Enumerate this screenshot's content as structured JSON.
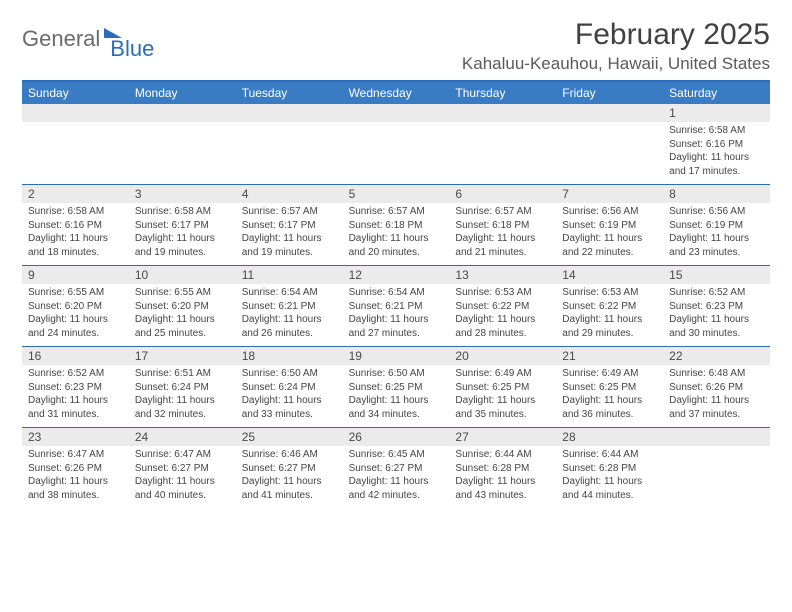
{
  "logo": {
    "text1": "General",
    "text2": "Blue"
  },
  "title": "February 2025",
  "location": "Kahaluu-Keauhou, Hawaii, United States",
  "colors": {
    "header_bar": "#3a7cc4",
    "rule": "#2a6db8",
    "daynum_bg": "#ebebeb",
    "text": "#454545",
    "title_text": "#414141"
  },
  "day_headers": [
    "Sunday",
    "Monday",
    "Tuesday",
    "Wednesday",
    "Thursday",
    "Friday",
    "Saturday"
  ],
  "weeks": [
    [
      null,
      null,
      null,
      null,
      null,
      null,
      {
        "n": "1",
        "sunrise": "6:58 AM",
        "sunset": "6:16 PM",
        "daylight": "11 hours and 17 minutes."
      }
    ],
    [
      {
        "n": "2",
        "sunrise": "6:58 AM",
        "sunset": "6:16 PM",
        "daylight": "11 hours and 18 minutes."
      },
      {
        "n": "3",
        "sunrise": "6:58 AM",
        "sunset": "6:17 PM",
        "daylight": "11 hours and 19 minutes."
      },
      {
        "n": "4",
        "sunrise": "6:57 AM",
        "sunset": "6:17 PM",
        "daylight": "11 hours and 19 minutes."
      },
      {
        "n": "5",
        "sunrise": "6:57 AM",
        "sunset": "6:18 PM",
        "daylight": "11 hours and 20 minutes."
      },
      {
        "n": "6",
        "sunrise": "6:57 AM",
        "sunset": "6:18 PM",
        "daylight": "11 hours and 21 minutes."
      },
      {
        "n": "7",
        "sunrise": "6:56 AM",
        "sunset": "6:19 PM",
        "daylight": "11 hours and 22 minutes."
      },
      {
        "n": "8",
        "sunrise": "6:56 AM",
        "sunset": "6:19 PM",
        "daylight": "11 hours and 23 minutes."
      }
    ],
    [
      {
        "n": "9",
        "sunrise": "6:55 AM",
        "sunset": "6:20 PM",
        "daylight": "11 hours and 24 minutes."
      },
      {
        "n": "10",
        "sunrise": "6:55 AM",
        "sunset": "6:20 PM",
        "daylight": "11 hours and 25 minutes."
      },
      {
        "n": "11",
        "sunrise": "6:54 AM",
        "sunset": "6:21 PM",
        "daylight": "11 hours and 26 minutes."
      },
      {
        "n": "12",
        "sunrise": "6:54 AM",
        "sunset": "6:21 PM",
        "daylight": "11 hours and 27 minutes."
      },
      {
        "n": "13",
        "sunrise": "6:53 AM",
        "sunset": "6:22 PM",
        "daylight": "11 hours and 28 minutes."
      },
      {
        "n": "14",
        "sunrise": "6:53 AM",
        "sunset": "6:22 PM",
        "daylight": "11 hours and 29 minutes."
      },
      {
        "n": "15",
        "sunrise": "6:52 AM",
        "sunset": "6:23 PM",
        "daylight": "11 hours and 30 minutes."
      }
    ],
    [
      {
        "n": "16",
        "sunrise": "6:52 AM",
        "sunset": "6:23 PM",
        "daylight": "11 hours and 31 minutes."
      },
      {
        "n": "17",
        "sunrise": "6:51 AM",
        "sunset": "6:24 PM",
        "daylight": "11 hours and 32 minutes."
      },
      {
        "n": "18",
        "sunrise": "6:50 AM",
        "sunset": "6:24 PM",
        "daylight": "11 hours and 33 minutes."
      },
      {
        "n": "19",
        "sunrise": "6:50 AM",
        "sunset": "6:25 PM",
        "daylight": "11 hours and 34 minutes."
      },
      {
        "n": "20",
        "sunrise": "6:49 AM",
        "sunset": "6:25 PM",
        "daylight": "11 hours and 35 minutes."
      },
      {
        "n": "21",
        "sunrise": "6:49 AM",
        "sunset": "6:25 PM",
        "daylight": "11 hours and 36 minutes."
      },
      {
        "n": "22",
        "sunrise": "6:48 AM",
        "sunset": "6:26 PM",
        "daylight": "11 hours and 37 minutes."
      }
    ],
    [
      {
        "n": "23",
        "sunrise": "6:47 AM",
        "sunset": "6:26 PM",
        "daylight": "11 hours and 38 minutes."
      },
      {
        "n": "24",
        "sunrise": "6:47 AM",
        "sunset": "6:27 PM",
        "daylight": "11 hours and 40 minutes."
      },
      {
        "n": "25",
        "sunrise": "6:46 AM",
        "sunset": "6:27 PM",
        "daylight": "11 hours and 41 minutes."
      },
      {
        "n": "26",
        "sunrise": "6:45 AM",
        "sunset": "6:27 PM",
        "daylight": "11 hours and 42 minutes."
      },
      {
        "n": "27",
        "sunrise": "6:44 AM",
        "sunset": "6:28 PM",
        "daylight": "11 hours and 43 minutes."
      },
      {
        "n": "28",
        "sunrise": "6:44 AM",
        "sunset": "6:28 PM",
        "daylight": "11 hours and 44 minutes."
      },
      null
    ]
  ],
  "labels": {
    "sunrise": "Sunrise:",
    "sunset": "Sunset:",
    "daylight": "Daylight:"
  }
}
